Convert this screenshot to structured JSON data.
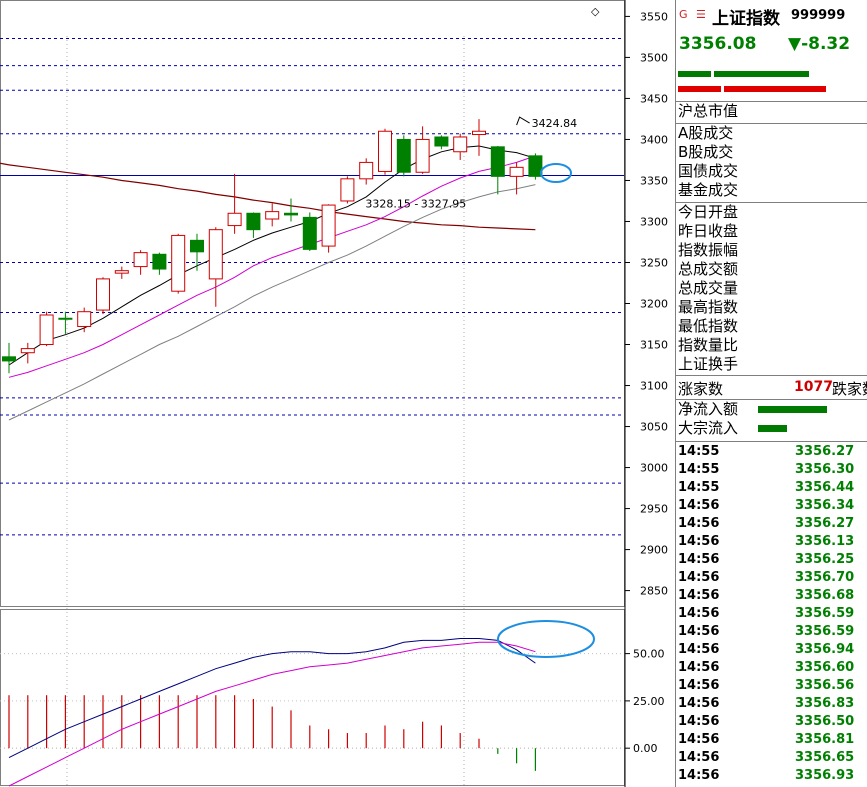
{
  "index": {
    "g_mark": "G",
    "e_mark": "☰",
    "name": "上证指数",
    "code": "999999",
    "price": "3356.08",
    "change": "▼-8.32",
    "colors": {
      "up": "#d00000",
      "down": "#008000",
      "ma_fast": "#000000",
      "ma_mid": "#d000d0",
      "ma_slow": "#808080",
      "ma_long": "#800000",
      "grid": "#0000aa",
      "highlight": "#1e8fe0"
    }
  },
  "panel": {
    "labels_group1": [
      "沪总市值"
    ],
    "labels_group2": [
      "A股成交",
      "B股成交",
      "国债成交",
      "基金成交"
    ],
    "labels_group3": [
      "今日开盘",
      "昨日收盘",
      "指数振幅",
      "总成交额",
      "总成交量",
      "最高指数",
      "最低指数",
      "指数量比",
      "上证换手"
    ],
    "rise_label": "涨家数",
    "fall_count": "1077",
    "fall_label": "跌家数",
    "flow_labels": [
      "净流入额",
      "大宗流入"
    ],
    "flow_values": [
      0.72,
      0.3
    ]
  },
  "ticks": [
    {
      "time": "14:55",
      "value": "3356.27"
    },
    {
      "time": "14:55",
      "value": "3356.30"
    },
    {
      "time": "14:55",
      "value": "3356.44"
    },
    {
      "time": "14:56",
      "value": "3356.34"
    },
    {
      "time": "14:56",
      "value": "3356.27"
    },
    {
      "time": "14:56",
      "value": "3356.13"
    },
    {
      "time": "14:56",
      "value": "3356.25"
    },
    {
      "time": "14:56",
      "value": "3356.70"
    },
    {
      "time": "14:56",
      "value": "3356.68"
    },
    {
      "time": "14:56",
      "value": "3356.59"
    },
    {
      "time": "14:56",
      "value": "3356.59"
    },
    {
      "time": "14:56",
      "value": "3356.94"
    },
    {
      "time": "14:56",
      "value": "3356.60"
    },
    {
      "time": "14:56",
      "value": "3356.56"
    },
    {
      "time": "14:56",
      "value": "3356.83"
    },
    {
      "time": "14:56",
      "value": "3356.50"
    },
    {
      "time": "14:56",
      "value": "3356.81"
    },
    {
      "time": "14:56",
      "value": "3356.65"
    },
    {
      "time": "14:56",
      "value": "3356.93"
    }
  ],
  "chart_data": [
    {
      "type": "candlestick",
      "ylim": [
        2830,
        3570
      ],
      "y_ticks": [
        2850,
        2900,
        2950,
        3000,
        3050,
        3100,
        3150,
        3200,
        3250,
        3300,
        3350,
        3400,
        3450,
        3500,
        3550
      ],
      "y_tick_labels": [
        "2850",
        "2900",
        "2950",
        "3000",
        "3050",
        "3100",
        "3150",
        "3200",
        "3250",
        "3300",
        "3350",
        "3400",
        "3450",
        "3500",
        "3550"
      ],
      "guide_levels": [
        3523,
        3490,
        3460,
        3407,
        3250,
        3189,
        3085,
        3064,
        2981,
        2918
      ],
      "reference_level": 3356.08,
      "annotations": [
        {
          "text": "3424.84",
          "x": 27,
          "y": 3424.84
        },
        {
          "text": "3328.15",
          "x": 18,
          "y": 3328.15
        },
        {
          "text": "3327.95",
          "x": 21,
          "y": 3327.95
        }
      ],
      "candles": [
        {
          "o": 3135,
          "c": 3130,
          "h": 3152,
          "l": 3115
        },
        {
          "o": 3140,
          "c": 3145,
          "h": 3152,
          "l": 3127
        },
        {
          "o": 3150,
          "c": 3186,
          "h": 3190,
          "l": 3148
        },
        {
          "o": 3182,
          "c": 3181,
          "h": 3190,
          "l": 3163
        },
        {
          "o": 3172,
          "c": 3190,
          "h": 3195,
          "l": 3165
        },
        {
          "o": 3192,
          "c": 3230,
          "h": 3232,
          "l": 3187
        },
        {
          "o": 3237,
          "c": 3240,
          "h": 3245,
          "l": 3230
        },
        {
          "o": 3245,
          "c": 3262,
          "h": 3265,
          "l": 3235
        },
        {
          "o": 3260,
          "c": 3242,
          "h": 3262,
          "l": 3235
        },
        {
          "o": 3215,
          "c": 3283,
          "h": 3285,
          "l": 3212
        },
        {
          "o": 3277,
          "c": 3263,
          "h": 3285,
          "l": 3240
        },
        {
          "o": 3230,
          "c": 3290,
          "h": 3293,
          "l": 3196
        },
        {
          "o": 3295,
          "c": 3310,
          "h": 3358,
          "l": 3285
        },
        {
          "o": 3310,
          "c": 3290,
          "h": 3311,
          "l": 3280
        },
        {
          "o": 3303,
          "c": 3312,
          "h": 3322,
          "l": 3294
        },
        {
          "o": 3310,
          "c": 3308,
          "h": 3328,
          "l": 3300
        },
        {
          "o": 3305,
          "c": 3266,
          "h": 3311,
          "l": 3264
        },
        {
          "o": 3270,
          "c": 3320,
          "h": 3321,
          "l": 3262
        },
        {
          "o": 3325,
          "c": 3352,
          "h": 3355,
          "l": 3322
        },
        {
          "o": 3352,
          "c": 3372,
          "h": 3377,
          "l": 3345
        },
        {
          "o": 3361,
          "c": 3410,
          "h": 3413,
          "l": 3357
        },
        {
          "o": 3400,
          "c": 3360,
          "h": 3405,
          "l": 3355
        },
        {
          "o": 3360,
          "c": 3400,
          "h": 3416,
          "l": 3358
        },
        {
          "o": 3403,
          "c": 3392,
          "h": 3405,
          "l": 3388
        },
        {
          "o": 3385,
          "c": 3403,
          "h": 3407,
          "l": 3375
        },
        {
          "o": 3406,
          "c": 3410,
          "h": 3424.84,
          "l": 3380
        },
        {
          "o": 3391,
          "c": 3355,
          "h": 3392,
          "l": 3333
        },
        {
          "o": 3355,
          "c": 3366,
          "h": 3372,
          "l": 3333
        },
        {
          "o": 3380,
          "c": 3355,
          "h": 3383,
          "l": 3351
        }
      ],
      "ma_fast": [
        3125,
        3140,
        3155,
        3162,
        3170,
        3182,
        3196,
        3210,
        3222,
        3235,
        3246,
        3256,
        3266,
        3277,
        3286,
        3293,
        3300,
        3310,
        3318,
        3330,
        3348,
        3364,
        3376,
        3385,
        3390,
        3392,
        3387,
        3384,
        3377
      ],
      "ma_mid": [
        3110,
        3116,
        3124,
        3132,
        3140,
        3150,
        3162,
        3174,
        3186,
        3198,
        3210,
        3220,
        3232,
        3246,
        3256,
        3264,
        3272,
        3280,
        3288,
        3296,
        3306,
        3318,
        3331,
        3343,
        3353,
        3361,
        3366,
        3372,
        3380
      ],
      "ma_slow": [
        3058,
        3069,
        3080,
        3091,
        3102,
        3114,
        3126,
        3138,
        3150,
        3160,
        3172,
        3184,
        3196,
        3209,
        3220,
        3230,
        3240,
        3250,
        3259,
        3270,
        3282,
        3294,
        3305,
        3315,
        3323,
        3330,
        3336,
        3340,
        3345
      ],
      "ma_long": [
        3369,
        3366,
        3363,
        3360,
        3357,
        3354,
        3350,
        3347,
        3344,
        3340,
        3337,
        3333,
        3330,
        3326,
        3323,
        3319,
        3316,
        3312,
        3309,
        3306,
        3303,
        3300,
        3298,
        3296,
        3295,
        3293,
        3292,
        3291,
        3290
      ]
    },
    {
      "type": "macd",
      "ylim": [
        -20,
        72
      ],
      "y_ticks": [
        0,
        25,
        50
      ],
      "y_tick_labels": [
        "0.00",
        "25.00",
        "50.00"
      ],
      "bars": [
        28,
        28,
        28,
        28,
        28,
        28,
        28,
        28,
        28,
        28,
        28,
        28,
        28,
        26,
        22,
        20,
        12,
        10,
        8,
        8,
        12,
        10,
        14,
        12,
        8,
        5,
        -3,
        -8,
        -12
      ],
      "line_a": [
        -5,
        0,
        5,
        10,
        14,
        18,
        22,
        26,
        30,
        34,
        38,
        42,
        45,
        48,
        50,
        51,
        51,
        50,
        50,
        51,
        53,
        56,
        57,
        57,
        58,
        58,
        57,
        52,
        45
      ],
      "line_b": [
        -20,
        -15,
        -10,
        -5,
        0,
        5,
        10,
        14,
        18,
        22,
        26,
        30,
        33,
        36,
        39,
        41,
        43,
        44,
        45,
        47,
        49,
        51,
        53,
        54,
        55,
        56,
        56,
        54,
        51
      ]
    }
  ]
}
